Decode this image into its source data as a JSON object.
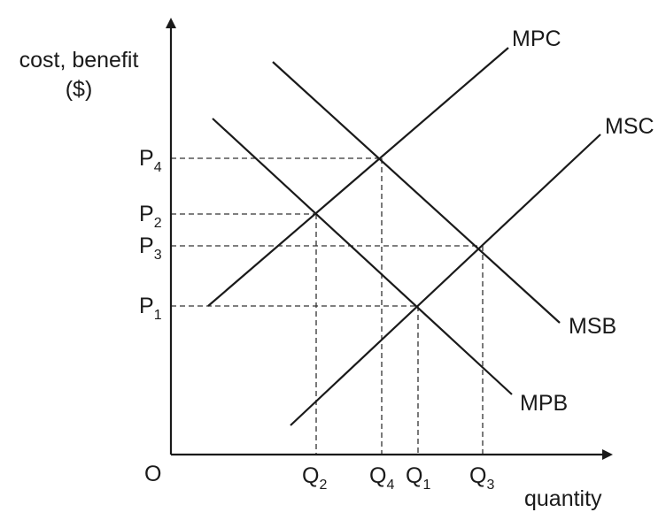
{
  "axes": {
    "y_title_line1": "cost, benefit",
    "y_title_line2": "($)",
    "x_title": "quantity",
    "origin": "O"
  },
  "curves": {
    "mpc": "MPC",
    "msc": "MSC",
    "msb": "MSB",
    "mpb": "MPB"
  },
  "price_ticks": [
    {
      "base": "P",
      "sub": "4"
    },
    {
      "base": "P",
      "sub": "2"
    },
    {
      "base": "P",
      "sub": "3"
    },
    {
      "base": "P",
      "sub": "1"
    }
  ],
  "quantity_ticks": [
    {
      "base": "Q",
      "sub": "2"
    },
    {
      "base": "Q",
      "sub": "4"
    },
    {
      "base": "Q",
      "sub": "1"
    },
    {
      "base": "Q",
      "sub": "3"
    }
  ]
}
